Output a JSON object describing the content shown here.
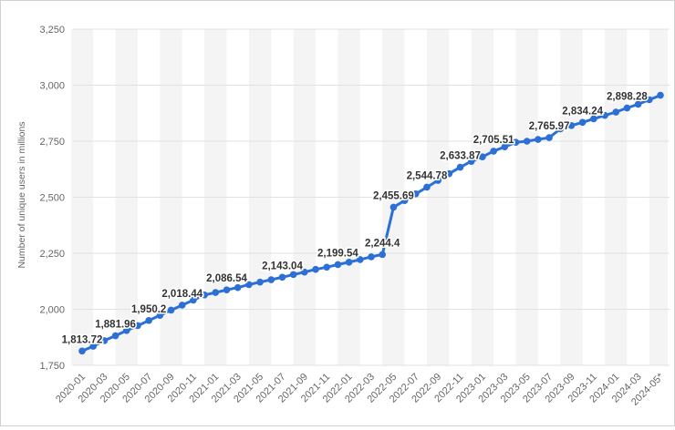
{
  "chart_data": {
    "type": "line",
    "title": "",
    "xlabel": "",
    "ylabel": "Number of unique users in millions",
    "ylim": [
      1750,
      3250
    ],
    "yticks": [
      "1,750",
      "2,000",
      "2,250",
      "2,500",
      "2,750",
      "3,000",
      "3,250"
    ],
    "grid": true,
    "color": "#2c6fd6",
    "x": [
      "2020-01",
      "2020-02",
      "2020-03",
      "2020-04",
      "2020-05",
      "2020-06",
      "2020-07",
      "2020-08",
      "2020-09",
      "2020-10",
      "2020-11",
      "2020-12",
      "2021-01",
      "2021-02",
      "2021-03",
      "2021-04",
      "2021-05",
      "2021-06",
      "2021-07",
      "2021-08",
      "2021-09",
      "2021-10",
      "2021-11",
      "2021-12",
      "2022-01",
      "2022-02",
      "2022-03",
      "2022-04",
      "2022-05",
      "2022-06",
      "2022-07",
      "2022-08",
      "2022-09",
      "2022-10",
      "2022-11",
      "2022-12",
      "2023-01",
      "2023-02",
      "2023-03",
      "2023-04",
      "2023-05",
      "2023-06",
      "2023-07",
      "2023-08",
      "2023-09",
      "2023-10",
      "2023-11",
      "2023-12",
      "2024-01",
      "2024-02",
      "2024-03",
      "2024-04",
      "2024-05*"
    ],
    "xtick_labels": [
      "2020-01",
      "2020-03",
      "2020-05",
      "2020-07",
      "2020-09",
      "2020-11",
      "2021-01",
      "2021-03",
      "2021-05",
      "2021-07",
      "2021-09",
      "2021-11",
      "2022-01",
      "2022-03",
      "2022-05",
      "2022-07",
      "2022-09",
      "2022-11",
      "2023-01",
      "2023-03",
      "2023-05",
      "2023-07",
      "2023-09",
      "2023-11",
      "2024-01",
      "2024-03",
      "2024-05*"
    ],
    "values": [
      1813.72,
      1835,
      1860,
      1881.96,
      1905,
      1927,
      1950.2,
      1973,
      1996,
      2018.44,
      2041,
      2064,
      2075,
      2086.54,
      2097,
      2110,
      2121,
      2132,
      2143.04,
      2155,
      2166,
      2178,
      2188,
      2199.54,
      2210,
      2222,
      2234,
      2244.4,
      2455.69,
      2485,
      2515,
      2544.78,
      2575,
      2605,
      2633.87,
      2660,
      2680,
      2705.51,
      2725,
      2745,
      2750,
      2758,
      2765.97,
      2805,
      2820,
      2834.24,
      2850,
      2865,
      2880,
      2898.28,
      2915,
      2935,
      2955
    ],
    "data_labels": [
      {
        "index": 0,
        "text": "1,813.72"
      },
      {
        "index": 3,
        "text": "1,881.96"
      },
      {
        "index": 6,
        "text": "1,950.2"
      },
      {
        "index": 9,
        "text": "2,018.44"
      },
      {
        "index": 13,
        "text": "2,086.54"
      },
      {
        "index": 18,
        "text": "2,143.04"
      },
      {
        "index": 23,
        "text": "2,199.54"
      },
      {
        "index": 27,
        "text": "2,244.4"
      },
      {
        "index": 28,
        "text": "2,455.69"
      },
      {
        "index": 31,
        "text": "2,544.78"
      },
      {
        "index": 34,
        "text": "2,633.87"
      },
      {
        "index": 37,
        "text": "2,705.51"
      },
      {
        "index": 42,
        "text": "2,765.97"
      },
      {
        "index": 45,
        "text": "2,834.24"
      },
      {
        "index": 49,
        "text": "2,898.28"
      }
    ]
  }
}
